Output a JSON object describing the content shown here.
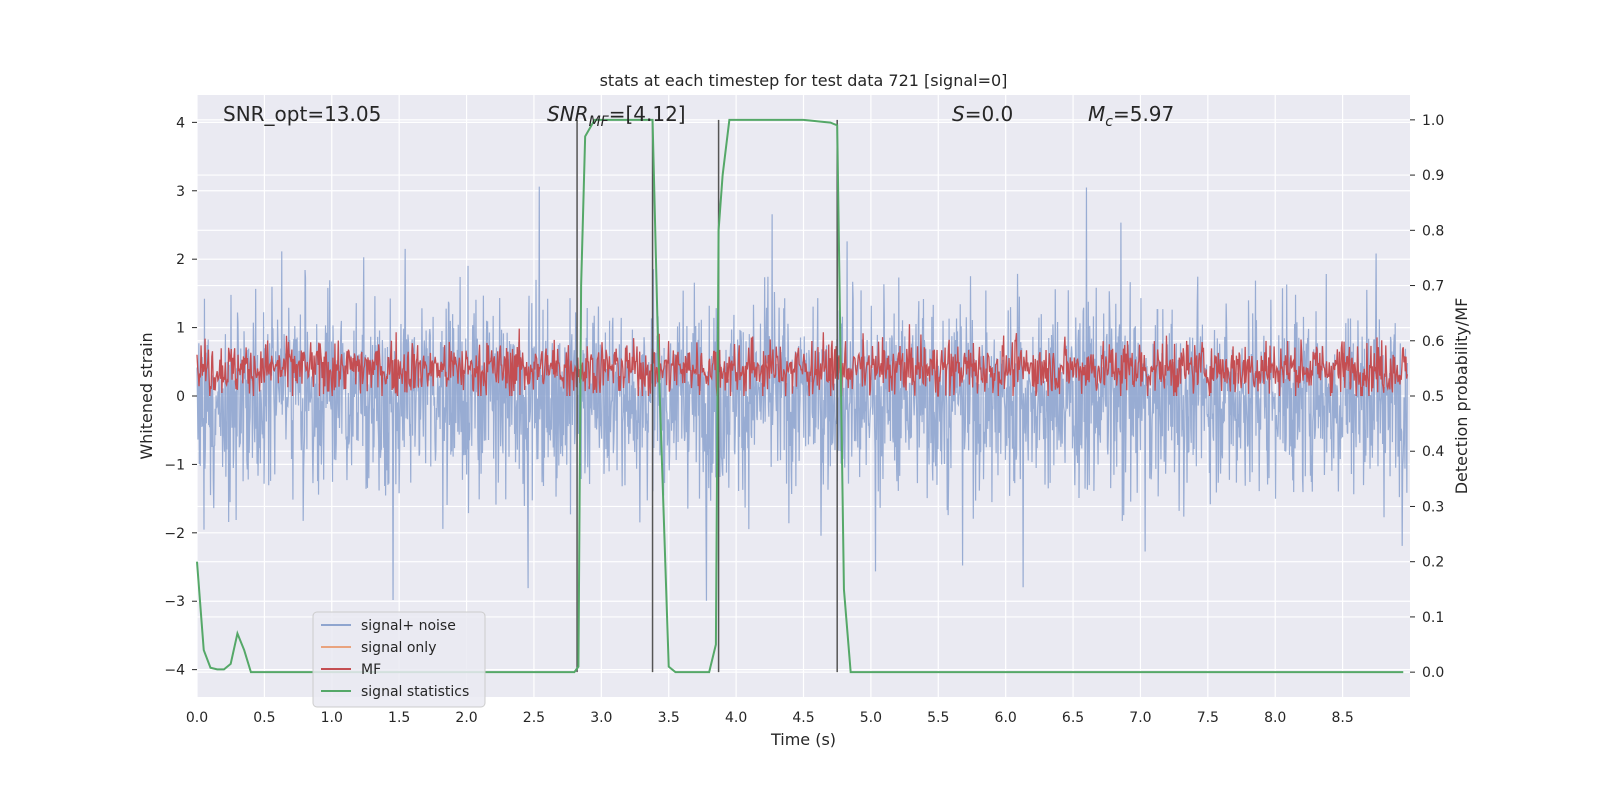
{
  "chart_data": {
    "type": "line",
    "title": "stats at each timestep for test data 721 [signal=0]",
    "xlabel": "Time (s)",
    "ylabel": "Whitened strain",
    "y2label": "Detection probability/MF",
    "xlim": [
      0.0,
      9.0
    ],
    "ylim": [
      -4.4,
      4.4
    ],
    "y2lim": [
      -0.045,
      1.045
    ],
    "xticks": [
      "0.0",
      "0.5",
      "1.0",
      "1.5",
      "2.0",
      "2.5",
      "3.0",
      "3.5",
      "4.0",
      "4.5",
      "5.0",
      "5.5",
      "6.0",
      "6.5",
      "7.0",
      "7.5",
      "8.0",
      "8.5"
    ],
    "yticks": [
      "4",
      "3",
      "2",
      "1",
      "0",
      "−1",
      "−2",
      "−3",
      "−4"
    ],
    "y2ticks": [
      "1.0",
      "0.9",
      "0.8",
      "0.7",
      "0.6",
      "0.5",
      "0.4",
      "0.3",
      "0.2",
      "0.1",
      "0.0"
    ],
    "grid": true,
    "legend_position": "lower-left",
    "annotations": {
      "snr_opt": "SNR_opt=13.05",
      "snr_mf_main": "SNR",
      "snr_mf_sub": "MF",
      "snr_mf_val": "=[4.12]",
      "s_var": "S",
      "s_val": "=0.0",
      "mc_var": "M",
      "mc_sub": "c",
      "mc_val": "=5.97"
    },
    "series": [
      {
        "name": "signal+ noise",
        "axis": "left",
        "color": "#8fa5cf",
        "style": "noise",
        "amplitude_std": 1.25,
        "note_range": [
          -3.9,
          3.9
        ]
      },
      {
        "name": "signal only",
        "axis": "left",
        "color": "#e9a37e",
        "style": "flat",
        "values": [
          [
            0.0,
            0.0
          ],
          [
            9.0,
            0.0
          ]
        ]
      },
      {
        "name": "MF",
        "axis": "right",
        "color": "#c44e52",
        "style": "noise-band",
        "center": 0.55,
        "range": [
          0.5,
          0.63
        ]
      },
      {
        "name": "signal statistics",
        "axis": "right",
        "color": "#55a868",
        "style": "line",
        "x": [
          0.0,
          0.05,
          0.1,
          0.15,
          0.2,
          0.25,
          0.3,
          0.35,
          0.4,
          0.45,
          0.5,
          0.6,
          1.0,
          2.0,
          2.5,
          2.8,
          2.83,
          2.85,
          2.88,
          2.95,
          3.0,
          3.2,
          3.38,
          3.42,
          3.5,
          3.55,
          3.6,
          3.7,
          3.8,
          3.85,
          3.87,
          3.9,
          3.95,
          4.0,
          4.2,
          4.5,
          4.7,
          4.75,
          4.8,
          4.85,
          4.9,
          5.0,
          6.0,
          7.0,
          8.0,
          8.95
        ],
        "y": [
          0.2,
          0.04,
          0.008,
          0.005,
          0.005,
          0.015,
          0.07,
          0.04,
          0.0,
          0.0,
          0.0,
          0.0,
          0.0,
          0.0,
          0.0,
          0.0,
          0.01,
          0.7,
          0.97,
          1.0,
          1.0,
          1.0,
          1.0,
          0.6,
          0.01,
          0.0,
          0.0,
          0.0,
          0.0,
          0.05,
          0.8,
          0.9,
          1.0,
          1.0,
          1.0,
          1.0,
          0.995,
          0.99,
          0.15,
          0.0,
          0.0,
          0.0,
          0.0,
          0.0,
          0.0,
          0.0
        ]
      }
    ],
    "vlines": [
      2.82,
      3.38,
      3.87,
      4.75
    ]
  }
}
